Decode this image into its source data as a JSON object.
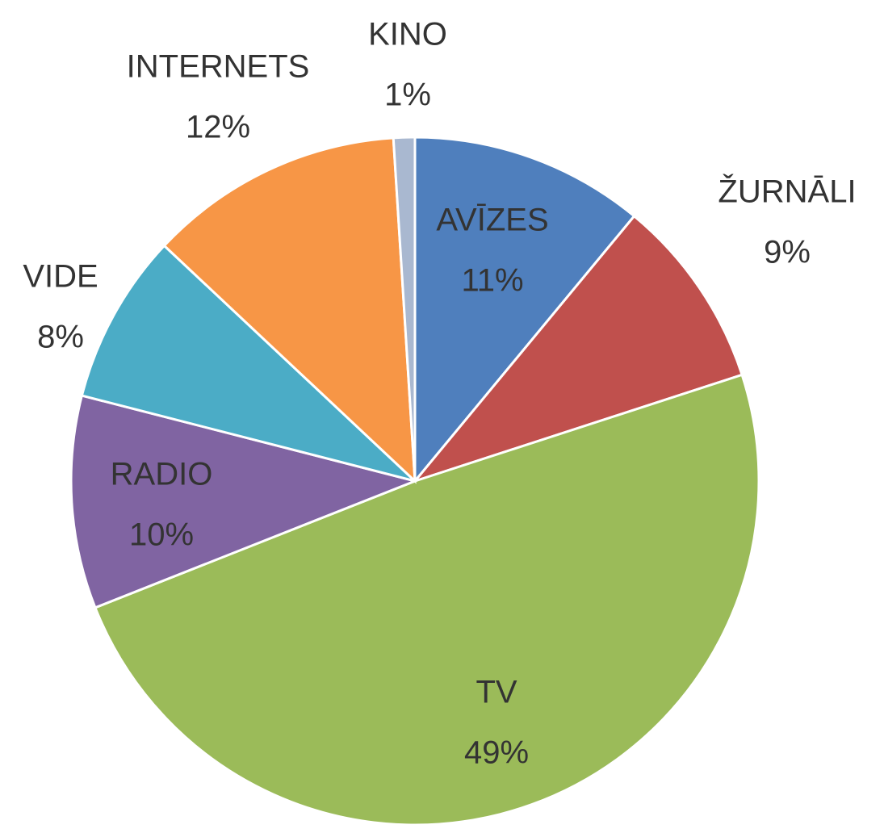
{
  "chart_data": {
    "type": "pie",
    "categories": [
      "AVĪZES",
      "ŽURNĀLI",
      "TV",
      "RADIO",
      "VIDE",
      "INTERNETS",
      "KINO"
    ],
    "values": [
      11,
      9,
      49,
      10,
      8,
      12,
      1
    ],
    "value_labels": [
      "11%",
      "9%",
      "49%",
      "10%",
      "8%",
      "12%",
      "1%"
    ],
    "colors": [
      "#4f7fbd",
      "#c0504d",
      "#9bbb59",
      "#8064a2",
      "#4bacc6",
      "#f79646",
      "#a9b8d0"
    ]
  }
}
